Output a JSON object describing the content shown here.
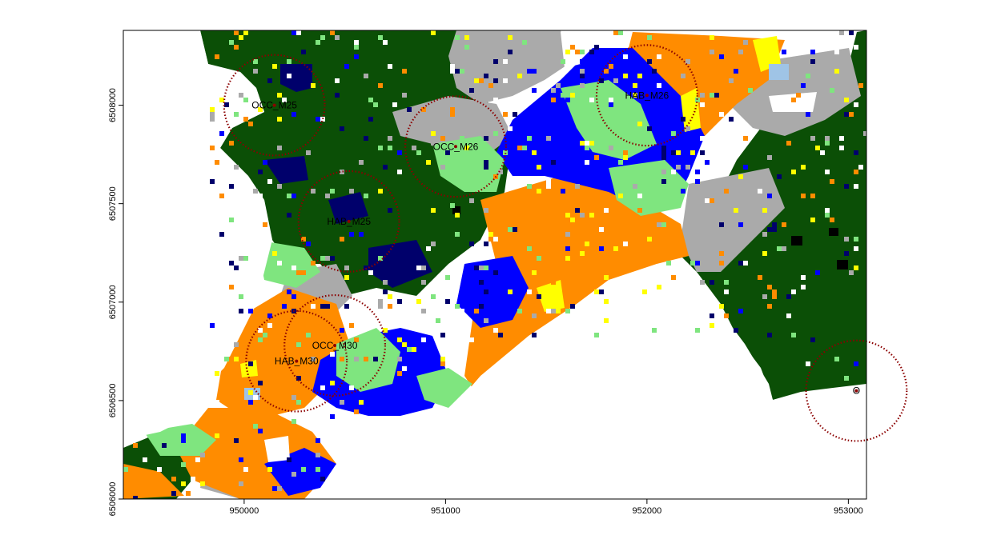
{
  "map": {
    "x_ticks": [
      {
        "value": 950000,
        "label": "950000"
      },
      {
        "value": 951000,
        "label": "951000"
      },
      {
        "value": 952000,
        "label": "952000"
      },
      {
        "value": 953000,
        "label": "953000"
      }
    ],
    "y_ticks": [
      {
        "value": 6506000,
        "label": "6506000"
      },
      {
        "value": 6506500,
        "label": "6506500"
      },
      {
        "value": 6507000,
        "label": "6507000"
      },
      {
        "value": 6507500,
        "label": "6507500"
      },
      {
        "value": 6508000,
        "label": "6508000"
      }
    ],
    "x_range": [
      949400,
      953090
    ],
    "y_range": [
      6506000,
      6508380
    ],
    "colors": {
      "dark_forest": "#0b4f06",
      "light_green": "#7fe57f",
      "orange": "#ff8c00",
      "blue": "#0000ff",
      "gray": "#aaaaaa",
      "navy": "#00006b",
      "yellow": "#ffff00",
      "light_blue": "#9fc4e6",
      "white": "#ffffff",
      "black": "#000000",
      "circle": "#8b0000"
    },
    "sites": [
      {
        "label": "OCC_M25",
        "x": 950150,
        "y": 6508000
      },
      {
        "label": "OCC_M26",
        "x": 951050,
        "y": 6507790
      },
      {
        "label": "HAB_M26",
        "x": 952000,
        "y": 6508050
      },
      {
        "label": "HAB_M25",
        "x": 950520,
        "y": 6507410
      },
      {
        "label": "OCC_M30",
        "x": 950450,
        "y": 6506780
      },
      {
        "label": "HAB_M30",
        "x": 950260,
        "y": 6506700
      },
      {
        "label": "O",
        "x": 953040,
        "y": 6506550
      }
    ]
  }
}
